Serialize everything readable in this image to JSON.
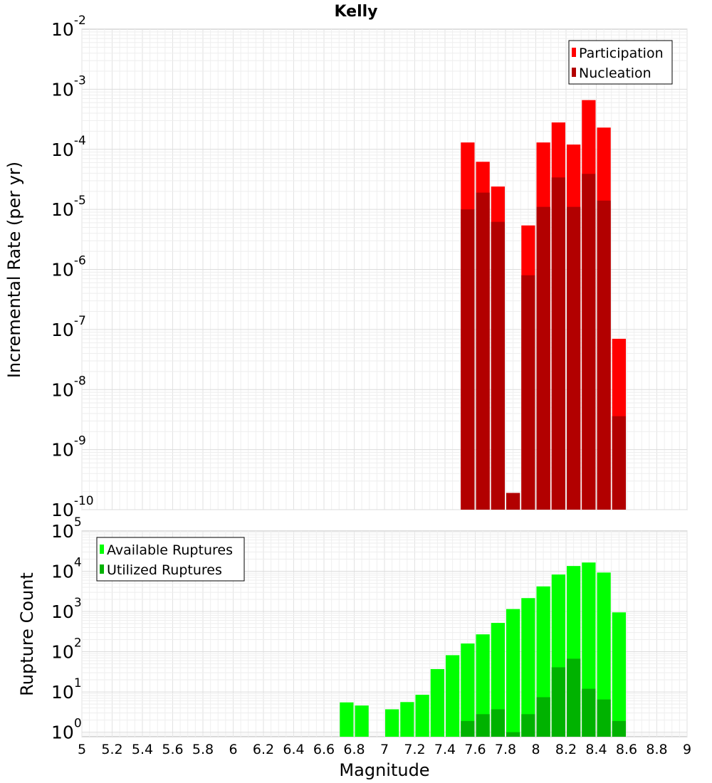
{
  "title": "Kelly",
  "xlabel": "Magnitude",
  "x_ticks": [
    "5",
    "5.2",
    "5.4",
    "5.6",
    "5.8",
    "6",
    "6.2",
    "6.4",
    "6.6",
    "6.8",
    "7",
    "7.2",
    "7.4",
    "7.6",
    "7.8",
    "8",
    "8.2",
    "8.4",
    "8.6",
    "8.8",
    "9"
  ],
  "chart_data": [
    {
      "type": "bar",
      "title": "Kelly",
      "xlabel": "",
      "ylabel": "Incremental Rate (per yr)",
      "y_scale": "log",
      "xlim": [
        5,
        9
      ],
      "ylim": [
        1e-10,
        0.01
      ],
      "y_tick_exponents": [
        -2,
        -3,
        -4,
        -5,
        -6,
        -7,
        -8,
        -9,
        -10
      ],
      "grid": true,
      "legend_position": "top-right",
      "bar_mode": "overlay",
      "x": [
        7.55,
        7.65,
        7.75,
        7.85,
        7.95,
        8.05,
        8.15,
        8.25,
        8.35,
        8.45,
        8.55
      ],
      "series": [
        {
          "name": "Participation",
          "color": "#ff0000",
          "values": [
            0.00013,
            6.2e-05,
            2.4e-05,
            null,
            5.4e-06,
            0.00013,
            0.00028,
            0.00012,
            0.00066,
            0.00023,
            7e-08
          ]
        },
        {
          "name": "Nucleation",
          "color": "#b20000",
          "values": [
            1e-05,
            1.9e-05,
            6.2e-06,
            1.9e-10,
            8e-07,
            1.1e-05,
            3.4e-05,
            1.1e-05,
            3.9e-05,
            1.4e-05,
            3.6e-09
          ]
        }
      ]
    },
    {
      "type": "bar",
      "xlabel": "Magnitude",
      "ylabel": "Rupture Count",
      "y_scale": "log",
      "xlim": [
        5,
        9
      ],
      "ylim": [
        0.77,
        100000.0
      ],
      "y_tick_exponents": [
        5,
        4,
        3,
        2,
        1,
        0
      ],
      "grid": true,
      "legend_position": "top-left",
      "bar_mode": "overlay",
      "x": [
        6.75,
        6.85,
        6.95,
        7.05,
        7.15,
        7.25,
        7.35,
        7.45,
        7.55,
        7.65,
        7.75,
        7.85,
        7.95,
        8.05,
        8.15,
        8.25,
        8.35,
        8.45,
        8.55
      ],
      "series": [
        {
          "name": "Available Ruptures",
          "color": "#00ff00",
          "values": [
            5.5,
            4.6,
            null,
            3.7,
            5.6,
            8.5,
            37,
            82,
            160,
            270,
            520,
            1150,
            2150,
            4200,
            8300,
            13500,
            16500,
            9300,
            950
          ]
        },
        {
          "name": "Utilized Ruptures",
          "color": "#00b200",
          "values": [
            null,
            null,
            null,
            null,
            null,
            null,
            null,
            null,
            1.9,
            2.8,
            3.7,
            1.0,
            2.8,
            7.4,
            41,
            67,
            12,
            6.5,
            1.9
          ]
        }
      ]
    }
  ]
}
